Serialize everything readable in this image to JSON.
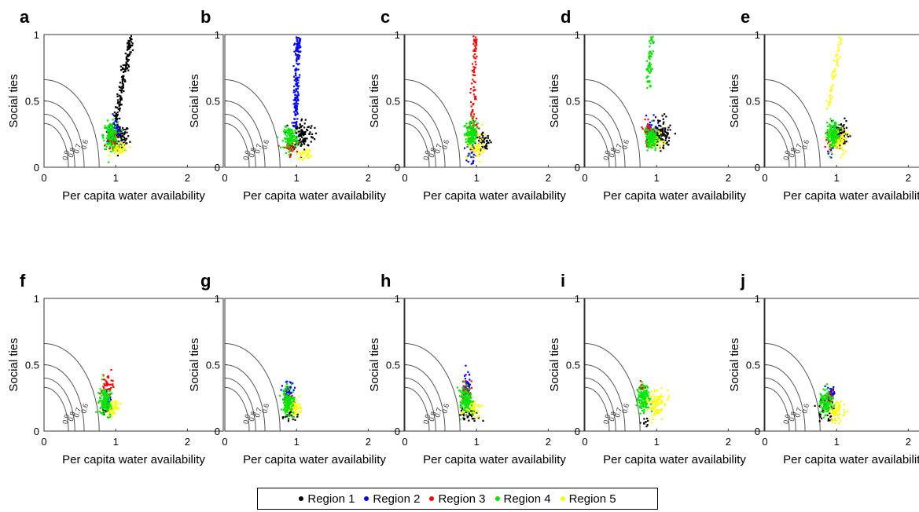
{
  "chart_data": {
    "type": "scatter",
    "xlabel": "Per capita water availability",
    "ylabel": "Social ties",
    "xlim": [
      0,
      2.5
    ],
    "ylim": [
      0,
      1
    ],
    "xticks": [
      "0",
      "1",
      "2"
    ],
    "yticks": [
      "0",
      "0.5",
      "1"
    ],
    "contour_levels": [
      "0.6",
      "0.7",
      "0.8",
      "0.9"
    ],
    "legend_placement": "bottom-center",
    "grid": false,
    "series": [
      {
        "name": "Region 1",
        "color": "#000000"
      },
      {
        "name": "Region 2",
        "color": "#0000ff"
      },
      {
        "name": "Region 3",
        "color": "#ff0000"
      },
      {
        "name": "Region 4",
        "color": "#00e600"
      },
      {
        "name": "Region 5",
        "color": "#ffff00"
      }
    ],
    "panels": [
      {
        "label": "a",
        "clusters": [
          {
            "s": 0,
            "cx": 1.05,
            "cy": 0.22,
            "sx": 0.07,
            "sy": 0.05,
            "n": 110
          },
          {
            "s": 0,
            "trail": [
              1.0,
              0.35,
              1.22,
              0.98
            ],
            "n": 160
          },
          {
            "s": 1,
            "cx": 0.98,
            "cy": 0.27,
            "sx": 0.05,
            "sy": 0.04,
            "n": 60
          },
          {
            "s": 2,
            "cx": 0.95,
            "cy": 0.2,
            "sx": 0.04,
            "sy": 0.04,
            "n": 50
          },
          {
            "s": 4,
            "cx": 1.05,
            "cy": 0.14,
            "sx": 0.06,
            "sy": 0.02,
            "n": 60
          },
          {
            "s": 3,
            "cx": 0.93,
            "cy": 0.24,
            "sx": 0.05,
            "sy": 0.05,
            "n": 130
          }
        ]
      },
      {
        "label": "b",
        "clusters": [
          {
            "s": 0,
            "cx": 1.08,
            "cy": 0.25,
            "sx": 0.08,
            "sy": 0.06,
            "n": 120
          },
          {
            "s": 1,
            "trail": [
              0.98,
              0.3,
              1.02,
              0.98
            ],
            "n": 160
          },
          {
            "s": 4,
            "cx": 1.12,
            "cy": 0.1,
            "sx": 0.06,
            "sy": 0.02,
            "n": 30
          },
          {
            "s": 2,
            "cx": 0.9,
            "cy": 0.15,
            "sx": 0.05,
            "sy": 0.03,
            "n": 40
          },
          {
            "s": 3,
            "cx": 0.92,
            "cy": 0.22,
            "sx": 0.05,
            "sy": 0.04,
            "n": 100
          }
        ]
      },
      {
        "label": "c",
        "clusters": [
          {
            "s": 0,
            "cx": 1.1,
            "cy": 0.19,
            "sx": 0.05,
            "sy": 0.03,
            "n": 50
          },
          {
            "s": 2,
            "trail": [
              0.95,
              0.4,
              0.98,
              0.98
            ],
            "n": 70
          },
          {
            "s": 2,
            "cx": 0.96,
            "cy": 0.3,
            "sx": 0.03,
            "sy": 0.06,
            "n": 40
          },
          {
            "s": 1,
            "cx": 0.94,
            "cy": 0.12,
            "sx": 0.04,
            "sy": 0.05,
            "n": 30
          },
          {
            "s": 4,
            "cx": 1.0,
            "cy": 0.15,
            "sx": 0.06,
            "sy": 0.05,
            "n": 60
          },
          {
            "s": 3,
            "cx": 0.92,
            "cy": 0.25,
            "sx": 0.04,
            "sy": 0.05,
            "n": 130
          }
        ]
      },
      {
        "label": "d",
        "clusters": [
          {
            "s": 0,
            "cx": 1.07,
            "cy": 0.25,
            "sx": 0.06,
            "sy": 0.06,
            "n": 110
          },
          {
            "s": 3,
            "trail": [
              0.88,
              0.6,
              0.93,
              0.98
            ],
            "n": 60
          },
          {
            "s": 1,
            "cx": 0.92,
            "cy": 0.28,
            "sx": 0.04,
            "sy": 0.04,
            "n": 40
          },
          {
            "s": 2,
            "cx": 0.9,
            "cy": 0.26,
            "sx": 0.04,
            "sy": 0.04,
            "n": 40
          },
          {
            "s": 4,
            "cx": 0.98,
            "cy": 0.2,
            "sx": 0.05,
            "sy": 0.03,
            "n": 40
          },
          {
            "s": 3,
            "cx": 0.93,
            "cy": 0.22,
            "sx": 0.05,
            "sy": 0.05,
            "n": 120
          }
        ]
      },
      {
        "label": "e",
        "clusters": [
          {
            "s": 0,
            "cx": 1.05,
            "cy": 0.25,
            "sx": 0.06,
            "sy": 0.04,
            "n": 90
          },
          {
            "s": 4,
            "trail": [
              0.88,
              0.45,
              1.05,
              0.98
            ],
            "n": 50
          },
          {
            "s": 1,
            "cx": 0.92,
            "cy": 0.13,
            "sx": 0.03,
            "sy": 0.02,
            "n": 15
          },
          {
            "s": 2,
            "cx": 0.92,
            "cy": 0.2,
            "sx": 0.03,
            "sy": 0.04,
            "n": 20
          },
          {
            "s": 4,
            "cx": 1.02,
            "cy": 0.2,
            "sx": 0.06,
            "sy": 0.05,
            "n": 80
          },
          {
            "s": 3,
            "cx": 0.95,
            "cy": 0.25,
            "sx": 0.04,
            "sy": 0.05,
            "n": 130
          }
        ]
      },
      {
        "label": "f",
        "clusters": [
          {
            "s": 2,
            "cx": 0.88,
            "cy": 0.33,
            "sx": 0.04,
            "sy": 0.04,
            "n": 50
          },
          {
            "s": 4,
            "cx": 0.95,
            "cy": 0.17,
            "sx": 0.05,
            "sy": 0.03,
            "n": 60
          },
          {
            "s": 1,
            "cx": 0.86,
            "cy": 0.25,
            "sx": 0.03,
            "sy": 0.03,
            "n": 20
          },
          {
            "s": 0,
            "cx": 0.85,
            "cy": 0.15,
            "sx": 0.03,
            "sy": 0.02,
            "n": 15
          },
          {
            "s": 3,
            "cx": 0.85,
            "cy": 0.23,
            "sx": 0.04,
            "sy": 0.05,
            "n": 140
          }
        ]
      },
      {
        "label": "g",
        "clusters": [
          {
            "s": 1,
            "cx": 0.88,
            "cy": 0.3,
            "sx": 0.04,
            "sy": 0.04,
            "n": 60
          },
          {
            "s": 2,
            "cx": 0.9,
            "cy": 0.22,
            "sx": 0.04,
            "sy": 0.04,
            "n": 20
          },
          {
            "s": 4,
            "cx": 0.98,
            "cy": 0.18,
            "sx": 0.05,
            "sy": 0.03,
            "n": 60
          },
          {
            "s": 0,
            "cx": 0.9,
            "cy": 0.12,
            "sx": 0.05,
            "sy": 0.02,
            "n": 20
          },
          {
            "s": 3,
            "cx": 0.88,
            "cy": 0.22,
            "sx": 0.04,
            "sy": 0.05,
            "n": 130
          }
        ]
      },
      {
        "label": "h",
        "clusters": [
          {
            "s": 1,
            "cx": 0.87,
            "cy": 0.35,
            "sx": 0.03,
            "sy": 0.05,
            "n": 50
          },
          {
            "s": 2,
            "cx": 0.86,
            "cy": 0.3,
            "sx": 0.03,
            "sy": 0.04,
            "n": 40
          },
          {
            "s": 0,
            "cx": 0.9,
            "cy": 0.12,
            "sx": 0.07,
            "sy": 0.02,
            "n": 40
          },
          {
            "s": 4,
            "cx": 0.92,
            "cy": 0.17,
            "sx": 0.05,
            "sy": 0.03,
            "n": 50
          },
          {
            "s": 3,
            "cx": 0.85,
            "cy": 0.23,
            "sx": 0.04,
            "sy": 0.05,
            "n": 130
          }
        ]
      },
      {
        "label": "i",
        "clusters": [
          {
            "s": 2,
            "cx": 0.8,
            "cy": 0.33,
            "sx": 0.02,
            "sy": 0.02,
            "n": 15
          },
          {
            "s": 4,
            "cx": 0.98,
            "cy": 0.2,
            "sx": 0.07,
            "sy": 0.05,
            "n": 110
          },
          {
            "s": 0,
            "cx": 0.85,
            "cy": 0.07,
            "sx": 0.03,
            "sy": 0.02,
            "n": 10
          },
          {
            "s": 3,
            "cx": 0.82,
            "cy": 0.24,
            "sx": 0.04,
            "sy": 0.05,
            "n": 130
          }
        ]
      },
      {
        "label": "j",
        "clusters": [
          {
            "s": 1,
            "cx": 0.93,
            "cy": 0.28,
            "sx": 0.04,
            "sy": 0.03,
            "n": 40
          },
          {
            "s": 2,
            "cx": 0.9,
            "cy": 0.25,
            "sx": 0.03,
            "sy": 0.03,
            "n": 20
          },
          {
            "s": 0,
            "cx": 0.85,
            "cy": 0.15,
            "sx": 0.06,
            "sy": 0.05,
            "n": 40
          },
          {
            "s": 4,
            "cx": 1.0,
            "cy": 0.15,
            "sx": 0.06,
            "sy": 0.04,
            "n": 70
          },
          {
            "s": 3,
            "cx": 0.85,
            "cy": 0.22,
            "sx": 0.04,
            "sy": 0.05,
            "n": 110
          }
        ]
      }
    ]
  },
  "legend": {
    "items": [
      "Region 1",
      "Region 2",
      "Region 3",
      "Region 4",
      "Region 5"
    ]
  }
}
